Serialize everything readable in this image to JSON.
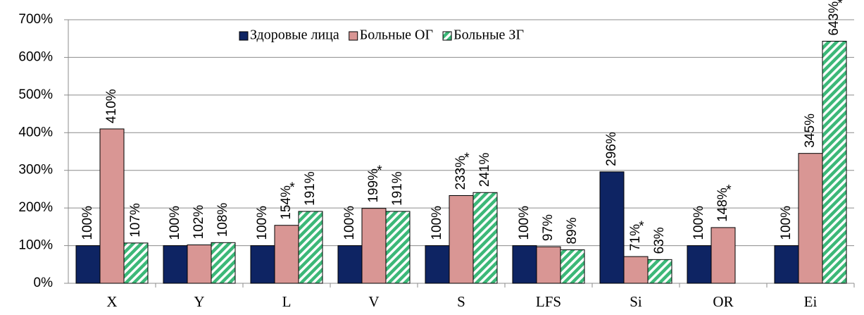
{
  "chart_data": {
    "type": "bar",
    "categories": [
      "X",
      "Y",
      "L",
      "V",
      "S",
      "LFS",
      "Si",
      "OR",
      "Ei"
    ],
    "series": [
      {
        "name": "Здоровые лица",
        "color": "#0e2463",
        "values": [
          100,
          100,
          100,
          100,
          100,
          100,
          296,
          100,
          100
        ],
        "value_labels": [
          "100%",
          "100%",
          "100%",
          "100%",
          "100%",
          "100%",
          "296%",
          "100%",
          "100%"
        ],
        "significance": [
          null,
          null,
          null,
          null,
          null,
          null,
          null,
          null,
          null
        ]
      },
      {
        "name": "Больные ОГ",
        "color": "#d99694",
        "values": [
          410,
          102,
          154,
          199,
          233,
          97,
          71,
          148,
          345
        ],
        "value_labels": [
          "410%",
          "102%",
          "154%",
          "199%",
          "233%",
          "97%",
          "71%",
          "148%",
          "345%"
        ],
        "significance": [
          null,
          null,
          "*",
          "*",
          "*",
          null,
          "*",
          "*",
          null
        ]
      },
      {
        "name": "Больные ЗГ",
        "color": "#3cb878",
        "hatch": true,
        "values": [
          107,
          108,
          191,
          191,
          241,
          89,
          63,
          null,
          643
        ],
        "value_labels": [
          "107%",
          "108%",
          "191%",
          "191%",
          "241%",
          "89%",
          "63%",
          null,
          "643%"
        ],
        "significance": [
          null,
          null,
          null,
          null,
          null,
          null,
          null,
          null,
          "*"
        ]
      }
    ],
    "ylim": [
      0,
      700
    ],
    "yticks": [
      {
        "value": 0,
        "label": "0%"
      },
      {
        "value": 100,
        "label": "100%"
      },
      {
        "value": 200,
        "label": "200%"
      },
      {
        "value": 300,
        "label": "300%"
      },
      {
        "value": 400,
        "label": "400%"
      },
      {
        "value": 500,
        "label": "500%"
      },
      {
        "value": 600,
        "label": "600%"
      },
      {
        "value": 700,
        "label": "700%"
      }
    ],
    "grid": true,
    "legend": "top"
  }
}
